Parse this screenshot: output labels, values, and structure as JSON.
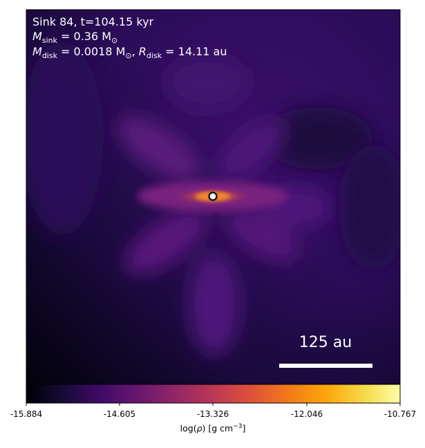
{
  "annotation": {
    "line1": "Sink 84, t=104.15 kyr",
    "line2_symbol": "M",
    "line2_sub": "sink",
    "line2_rest": " = 0.36 M",
    "line2_sun": "⊙",
    "line3_symbol": "M",
    "line3_sub": "disk",
    "line3_rest": " = 0.0018 M",
    "line3_sun": "⊙",
    "line3_sep": ", ",
    "line3_r_symbol": "R",
    "line3_r_sub": "disk",
    "line3_r_rest": " = 14.11 au"
  },
  "scale_bar": {
    "label": "125 au"
  },
  "colorbar": {
    "colormap": "inferno",
    "ticks": [
      "-15.884",
      "-14.605",
      "-13.326",
      "-12.046",
      "-10.767"
    ],
    "label_prefix": "log(",
    "label_rho": "ρ",
    "label_suffix": ") [g cm",
    "label_exp": "−3",
    "label_end": "]"
  },
  "colors": {
    "background_dark": "#2a0c5c",
    "filament": "#6a1b7e",
    "disk_core": "#f08a2a",
    "sink_marker_fill": "#ffffff",
    "sink_marker_edge": "#1a1a1a"
  }
}
